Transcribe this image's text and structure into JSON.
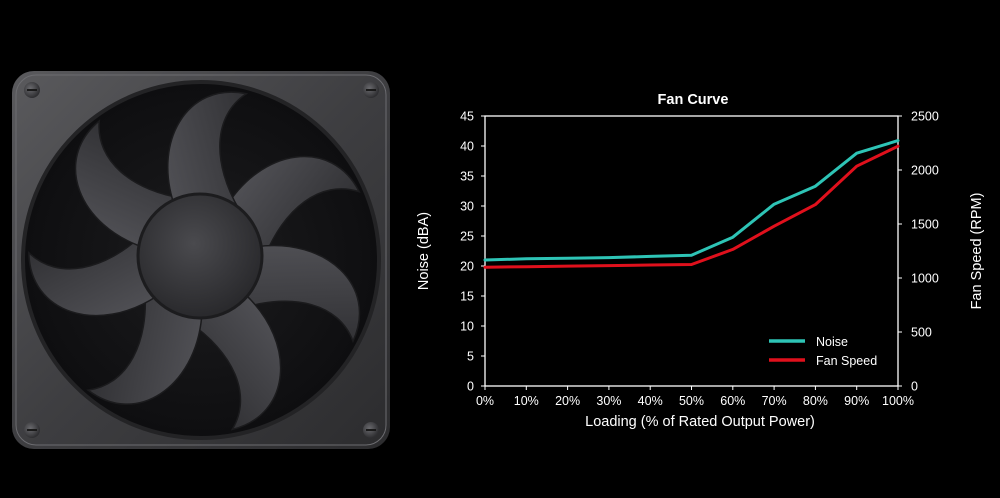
{
  "illustration": {
    "subject": "fan-icon"
  },
  "chart_data": {
    "type": "line",
    "title": "Fan Curve",
    "xlabel": "Loading (% of Rated Output Power)",
    "ylabel": "Noise (dBA)",
    "y2label": "Fan Speed (RPM)",
    "x": [
      0,
      10,
      20,
      30,
      40,
      50,
      60,
      70,
      80,
      90,
      100
    ],
    "xticks": [
      "0%",
      "10%",
      "20%",
      "30%",
      "40%",
      "50%",
      "60%",
      "70%",
      "80%",
      "90%",
      "100%"
    ],
    "ylim": [
      0,
      45
    ],
    "yticks": [
      "0",
      "5",
      "10",
      "15",
      "20",
      "25",
      "30",
      "35",
      "40",
      "45"
    ],
    "y2lim": [
      0,
      2500
    ],
    "y2ticks": [
      "0",
      "500",
      "1000",
      "1500",
      "2000",
      "2500"
    ],
    "grid": false,
    "legend_position": "bottom-right",
    "series": [
      {
        "name": "Noise",
        "axis": "left",
        "color": "#2ec4b6",
        "values": [
          21.0,
          21.2,
          21.3,
          21.4,
          21.6,
          21.8,
          24.8,
          30.3,
          33.3,
          38.8,
          40.9
        ]
      },
      {
        "name": "Fan Speed",
        "axis": "right",
        "color": "#e0101c",
        "values": [
          1100,
          1105,
          1110,
          1115,
          1120,
          1125,
          1265,
          1480,
          1680,
          2035,
          2220
        ]
      }
    ]
  }
}
